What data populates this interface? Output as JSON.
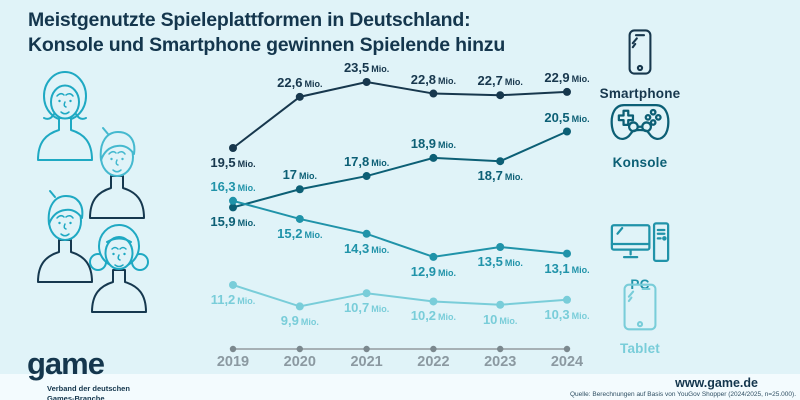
{
  "title": {
    "line1": "Meistgenutzte Spieleplattformen in Deutschland:",
    "line2": "Konsole und Smartphone gewinnen Spielende hinzu"
  },
  "colors": {
    "background": "#e0f3f8",
    "footer_band": "#f3fbfe",
    "navy": "#14364d",
    "axis_line": "#a6b0b5",
    "axis_dot": "#7b888e",
    "axis_text": "#8b99a1",
    "people_teal": "#1fa9c3",
    "people_light_teal": "#45b9cf"
  },
  "chart_data": {
    "type": "line",
    "x": [
      2019,
      2020,
      2021,
      2022,
      2023,
      2024
    ],
    "unit": "Mio.",
    "ylim": [
      9,
      24
    ],
    "grid": false,
    "legend_position": "right",
    "series": [
      {
        "name": "Smartphone",
        "color": "#17374d",
        "values": [
          19.5,
          22.6,
          23.5,
          22.8,
          22.7,
          22.9
        ],
        "labels": [
          "19,5",
          "22,6",
          "23,5",
          "22,8",
          "22,7",
          "22,9"
        ],
        "label_pos": [
          "below",
          "above",
          "above",
          "above",
          "above",
          "above"
        ]
      },
      {
        "name": "Konsole",
        "color": "#0c5f75",
        "values": [
          15.9,
          17,
          17.8,
          18.9,
          18.7,
          20.5
        ],
        "labels": [
          "15,9",
          "17",
          "17,8",
          "18,9",
          "18,7",
          "20,5"
        ],
        "label_pos": [
          "below",
          "above",
          "above",
          "above",
          "below",
          "above"
        ]
      },
      {
        "name": "PC",
        "color": "#2093a9",
        "values": [
          16.3,
          15.2,
          14.3,
          12.9,
          13.5,
          13.1
        ],
        "labels": [
          "16,3",
          "15,2",
          "14,3",
          "12,9",
          "13,5",
          "13,1"
        ],
        "label_pos": [
          "above",
          "below",
          "below",
          "below",
          "below",
          "below"
        ]
      },
      {
        "name": "Tablet",
        "color": "#79cdd9",
        "values": [
          11.2,
          9.9,
          10.7,
          10.2,
          10,
          10.3
        ],
        "labels": [
          "11,2",
          "9,9",
          "10,7",
          "10,2",
          "10",
          "10,3"
        ],
        "label_pos": [
          "below",
          "below",
          "below",
          "below",
          "below",
          "below"
        ]
      }
    ]
  },
  "legend": {
    "items": [
      {
        "label": "Smartphone",
        "icon": "smartphone-icon"
      },
      {
        "label": "Konsole",
        "icon": "gamepad-icon"
      },
      {
        "label": "PC",
        "icon": "desktop-pc-icon"
      },
      {
        "label": "Tablet",
        "icon": "tablet-icon"
      }
    ]
  },
  "footer": {
    "logo": "game",
    "logo_sub1": "Verband der deutschen",
    "logo_sub2": "Games-Branche",
    "website": "www.game.de",
    "source": "Quelle: Berechnungen auf Basis von YouGov Shopper (2024/2025, n=25.000)."
  }
}
